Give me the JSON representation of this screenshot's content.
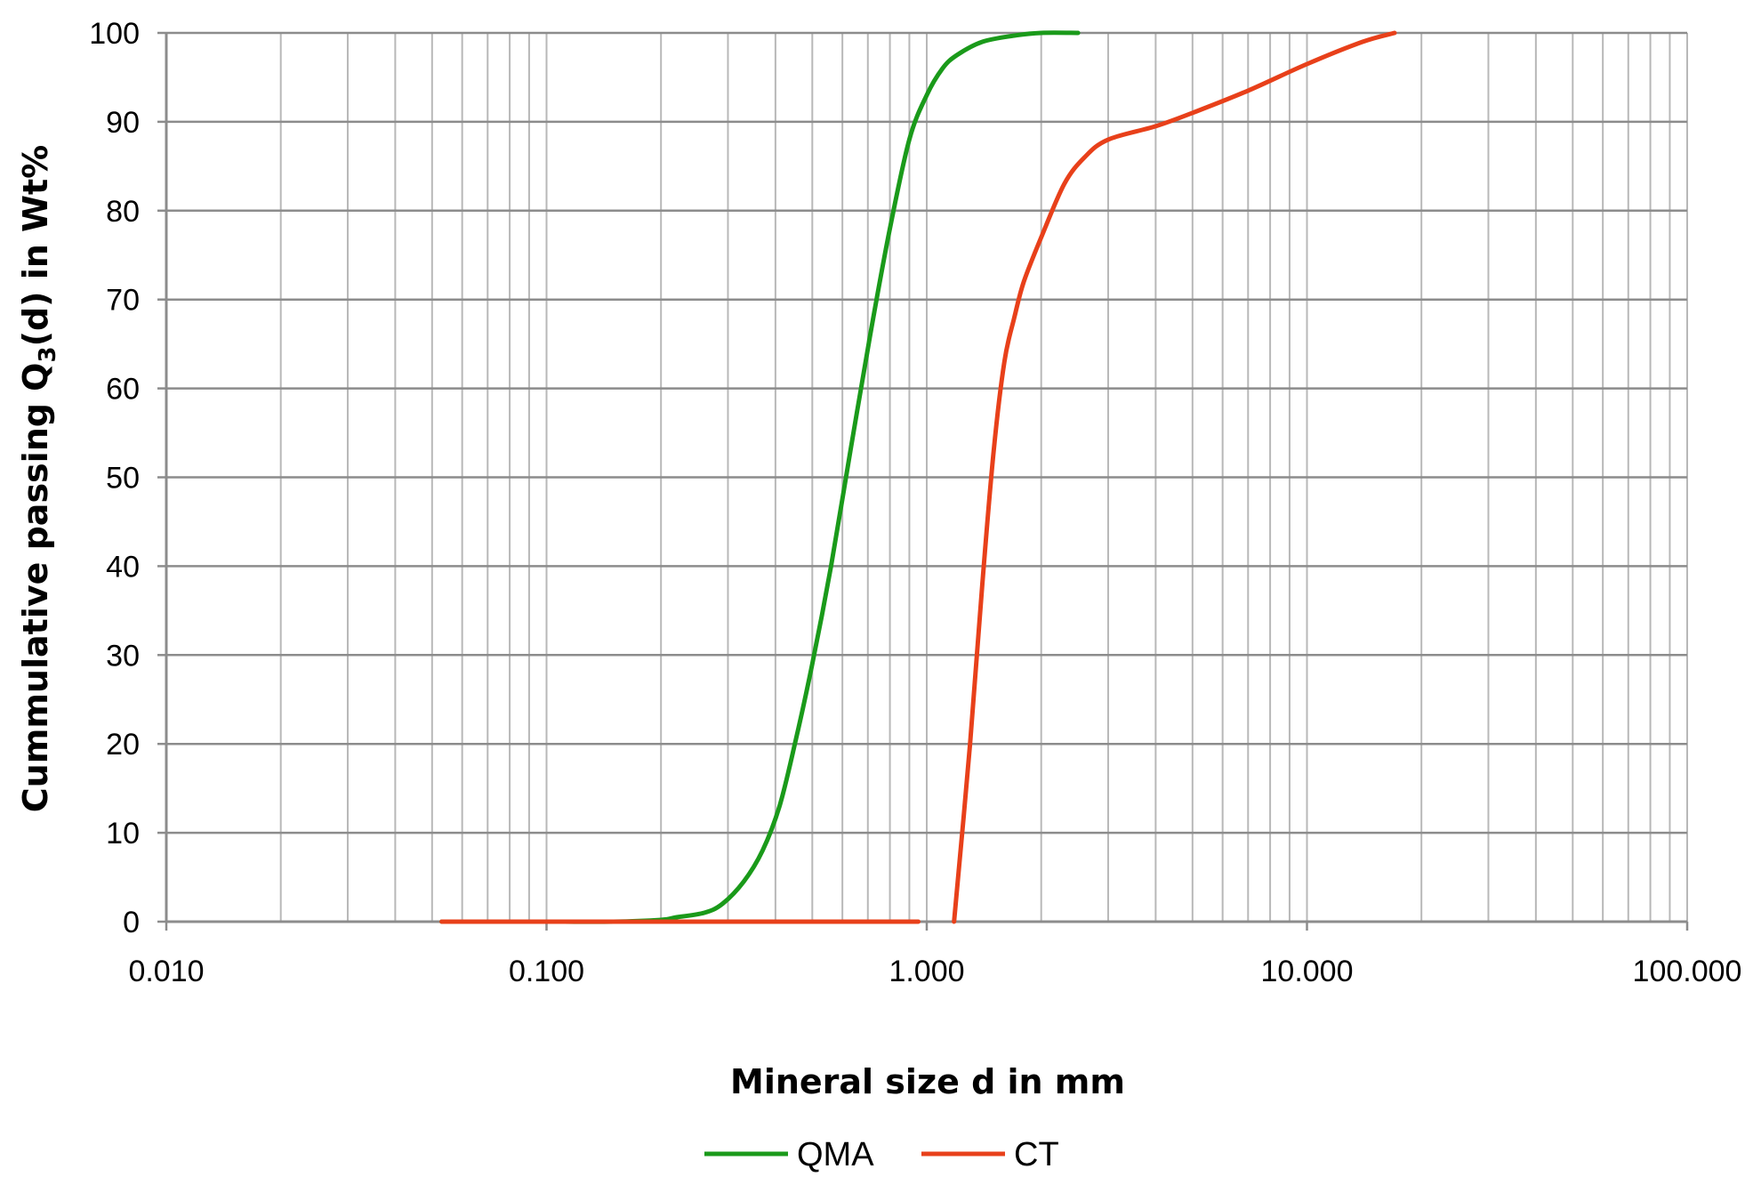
{
  "chart_data": {
    "type": "line",
    "xlabel": "Mineral size d in mm",
    "ylabel_main": "Cummulative passing Q",
    "ylabel_sub": "3",
    "ylabel_tail": "(d) in Wt%",
    "x_scale": "log",
    "xlim": [
      0.01,
      100
    ],
    "ylim": [
      0,
      100
    ],
    "grid": true,
    "legend_position": "bottom-center",
    "x_tick_labels": [
      "0.010",
      "0.100",
      "1.000",
      "10.000",
      "100.000"
    ],
    "y_tick_labels": [
      "0",
      "10",
      "20",
      "30",
      "40",
      "50",
      "60",
      "70",
      "80",
      "90",
      "100"
    ],
    "series": [
      {
        "name": "QMA",
        "color": "#1a9a1a",
        "x": [
          0.053,
          0.1,
          0.15,
          0.2,
          0.22,
          0.26,
          0.29,
          0.33,
          0.37,
          0.41,
          0.45,
          0.5,
          0.56,
          0.63,
          0.71,
          0.8,
          0.9,
          1.0,
          1.1,
          1.2,
          1.4,
          1.7,
          2.0,
          2.5
        ],
        "y": [
          0,
          0,
          0,
          0.2,
          0.5,
          1,
          2,
          4.5,
          8,
          13,
          20,
          29,
          40,
          53,
          66,
          78,
          88,
          93,
          96,
          97.5,
          99,
          99.7,
          100,
          100
        ]
      },
      {
        "name": "CT",
        "color": "#e8401a",
        "x": [
          0.053,
          0.1,
          0.2,
          0.5,
          0.85,
          0.95
        ],
        "y": [
          0,
          0,
          0,
          0,
          0,
          0
        ]
      },
      {
        "name": "CT",
        "color": "#e8401a",
        "x": [
          1.18,
          1.3,
          1.4,
          1.5,
          1.6,
          1.7,
          1.8,
          2.0,
          2.3,
          2.6,
          3.0,
          4.0,
          5.0,
          7.0,
          10.0,
          14.0,
          17.0
        ],
        "y": [
          0,
          20,
          38,
          53,
          63,
          68,
          72,
          77,
          83,
          86,
          88,
          89.5,
          91,
          93.5,
          96.5,
          99,
          100
        ]
      }
    ]
  }
}
